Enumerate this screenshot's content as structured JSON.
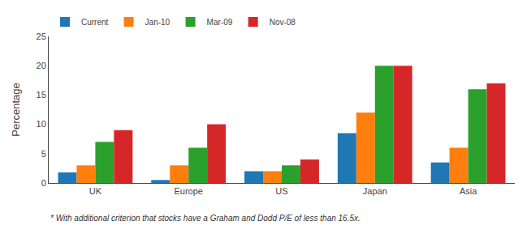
{
  "chart_data": {
    "type": "bar",
    "categories": [
      "UK",
      "Europe",
      "US",
      "Japan",
      "Asia"
    ],
    "series": [
      {
        "name": "Current",
        "values": [
          1.8,
          0.5,
          2.0,
          8.5,
          3.5
        ]
      },
      {
        "name": "Jan-10",
        "values": [
          3.0,
          3.0,
          2.0,
          12.0,
          6.0
        ]
      },
      {
        "name": "Mar-09",
        "values": [
          7.0,
          6.0,
          3.0,
          20.0,
          16.0
        ]
      },
      {
        "name": "Nov-08",
        "values": [
          9.0,
          10.0,
          4.0,
          20.0,
          17.0
        ]
      }
    ],
    "ylabel": "Percentage",
    "ylim": [
      0,
      25
    ],
    "yticks": [
      0,
      5,
      10,
      15,
      20,
      25
    ],
    "grid": false,
    "legend": "upper left",
    "annotations": [
      "* With additional criterion that stocks have a Graham and Dodd P/E of less than 16.5x."
    ]
  }
}
